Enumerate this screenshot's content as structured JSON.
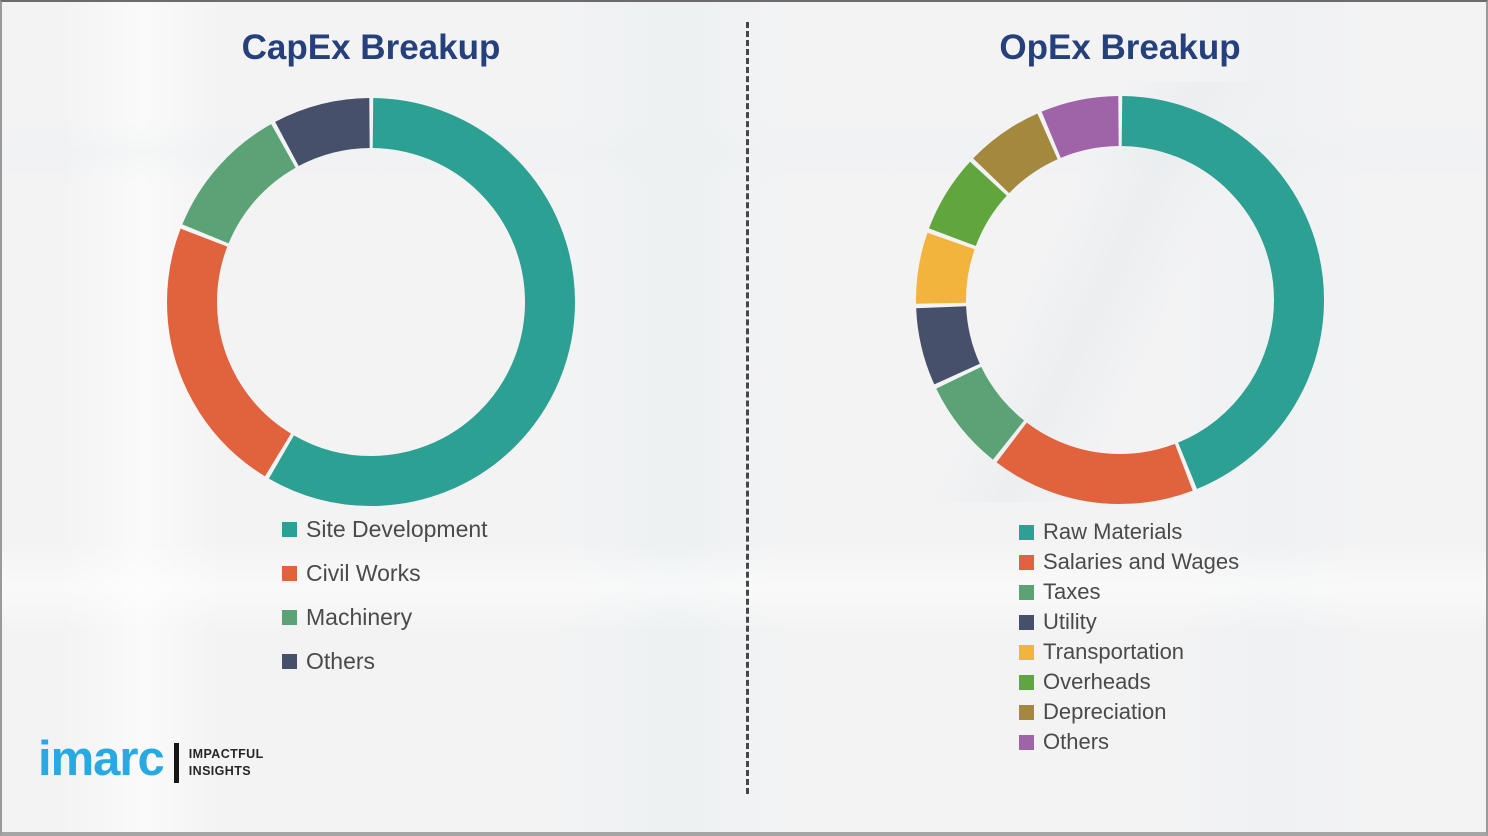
{
  "chart_data": [
    {
      "type": "pie",
      "subtype": "donut",
      "title": "CapEx Breakup",
      "categories": [
        "Site Development",
        "Civil Works",
        "Machinery",
        "Others"
      ],
      "values": [
        58.5,
        22.5,
        11,
        8
      ],
      "unit": "percent-estimated-from-arc-angles",
      "colors": [
        "#2ba093",
        "#e0633e",
        "#5ba377",
        "#47506a"
      ],
      "start_angle_deg": 0,
      "direction": "clockwise",
      "legend_position": "below-left"
    },
    {
      "type": "pie",
      "subtype": "donut",
      "title": "OpEx Breakup",
      "categories": [
        "Raw Materials",
        "Salaries and Wages",
        "Taxes",
        "Utility",
        "Transportation",
        "Overheads",
        "Depreciation",
        "Others"
      ],
      "values": [
        44,
        16.5,
        7.5,
        6.5,
        6,
        6.5,
        6.5,
        6.5
      ],
      "unit": "percent-estimated-from-arc-angles",
      "colors": [
        "#2ba093",
        "#e0633e",
        "#5ba377",
        "#47506a",
        "#f2b43c",
        "#61a63d",
        "#a4883e",
        "#9f63a8"
      ],
      "start_angle_deg": 0,
      "direction": "clockwise",
      "legend_position": "below-left"
    }
  ],
  "divider": {
    "style": "vertical-dashed",
    "color": "#474747"
  },
  "titles_color": "#26407c",
  "legend_text_color": "#4a4a4a",
  "logo": {
    "brand": "imarc",
    "brand_color": "#29a9e1",
    "tagline_line1": "IMPACTFUL",
    "tagline_line2": "INSIGHTS",
    "tagline_color": "#262626"
  }
}
